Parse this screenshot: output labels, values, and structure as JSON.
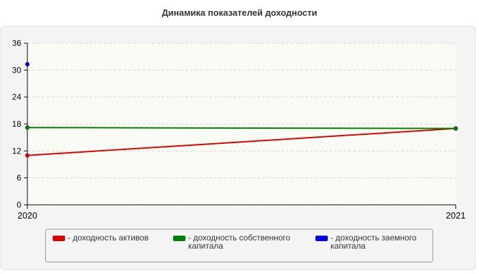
{
  "chart_data": {
    "type": "line",
    "title": "Динамика показателей доходности",
    "categories": [
      "2020",
      "2021"
    ],
    "y_ticks": [
      "0",
      "6",
      "12",
      "18",
      "24",
      "30",
      "36"
    ],
    "ylim": [
      0,
      36
    ],
    "grid": true,
    "legend_position": "bottom",
    "series": [
      {
        "name": "- доходность активов",
        "color": "#dd0000",
        "values": [
          11.0,
          17.0
        ]
      },
      {
        "name": "- доходность собственного капитала",
        "color": "#008000",
        "values": [
          17.2,
          17.0
        ]
      },
      {
        "name": "- доходность заемного капитала",
        "color": "#0000ee",
        "values": [
          31.3,
          null
        ]
      }
    ]
  }
}
